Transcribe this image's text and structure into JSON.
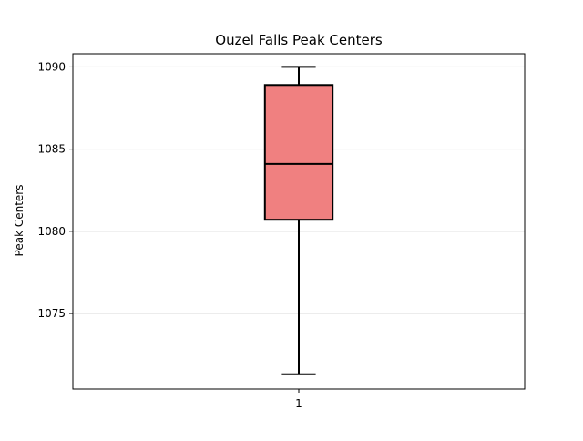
{
  "chart_data": {
    "type": "box",
    "title": "Ouzel Falls Peak Centers",
    "xlabel": "",
    "ylabel": "Peak Centers",
    "categories": [
      "1"
    ],
    "ylim": [
      1070.4,
      1090.8
    ],
    "yticks": [
      1075,
      1080,
      1085,
      1090
    ],
    "grid": {
      "y": true,
      "x": false
    },
    "legend": "none",
    "series": [
      {
        "category": "1",
        "whisker_low": 1071.3,
        "q1": 1080.7,
        "median": 1084.1,
        "q3": 1088.9,
        "whisker_high": 1090.0,
        "fill_color": "#f08080",
        "edge_color": "#000000"
      }
    ]
  }
}
